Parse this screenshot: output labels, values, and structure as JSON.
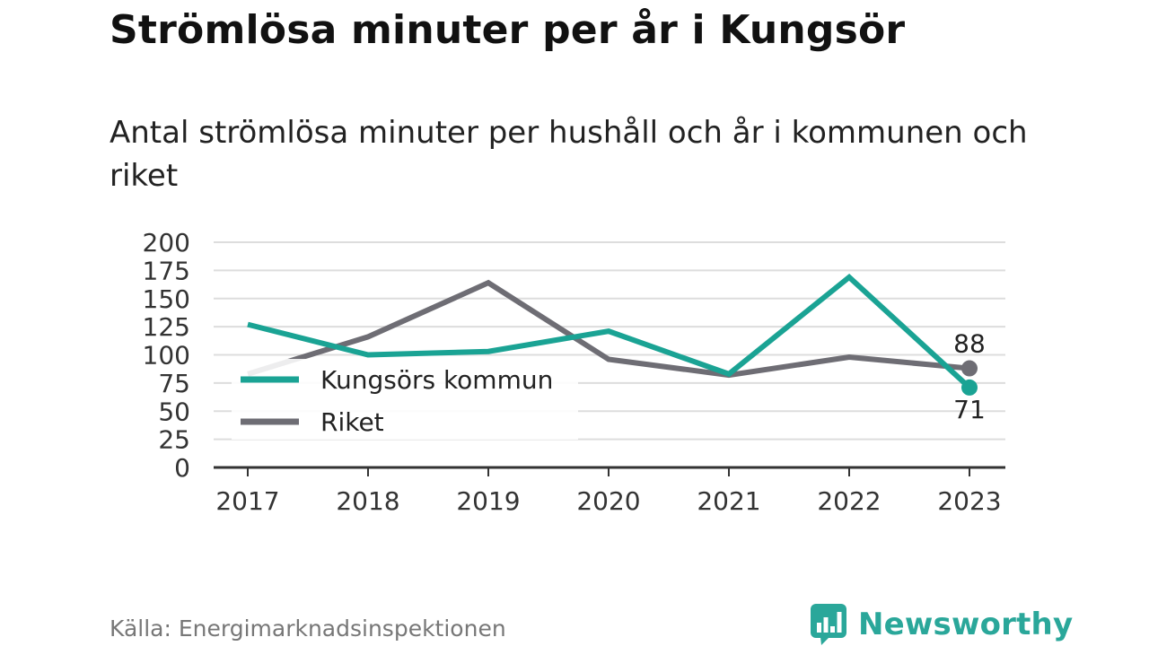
{
  "title": "Strömlösa minuter per år i Kungsör",
  "subtitle": "Antal strömlösa minuter per hushåll och år i kommunen och riket",
  "source": "Källa: Energimarknadsinspektionen",
  "brand": "Newsworthy",
  "colors": {
    "kommun": "#1aa394",
    "riket": "#6e6d74",
    "grid": "#dddddd",
    "axis": "#333333",
    "brand": "#2aa79a"
  },
  "chart_data": {
    "type": "line",
    "title": "",
    "xlabel": "",
    "ylabel": "",
    "x": [
      "2017",
      "2018",
      "2019",
      "2020",
      "2021",
      "2022",
      "2023"
    ],
    "ylim": [
      0,
      200
    ],
    "yticks": [
      0,
      25,
      50,
      75,
      100,
      125,
      150,
      175,
      200
    ],
    "grid": true,
    "legend": "left",
    "series": [
      {
        "name": "Kungsörs kommun",
        "values": [
          127,
          100,
          103,
          121,
          83,
          169,
          71
        ],
        "end_label": "71"
      },
      {
        "name": "Riket",
        "values": [
          83,
          116,
          164,
          96,
          82,
          98,
          88
        ],
        "end_label": "88"
      }
    ]
  }
}
